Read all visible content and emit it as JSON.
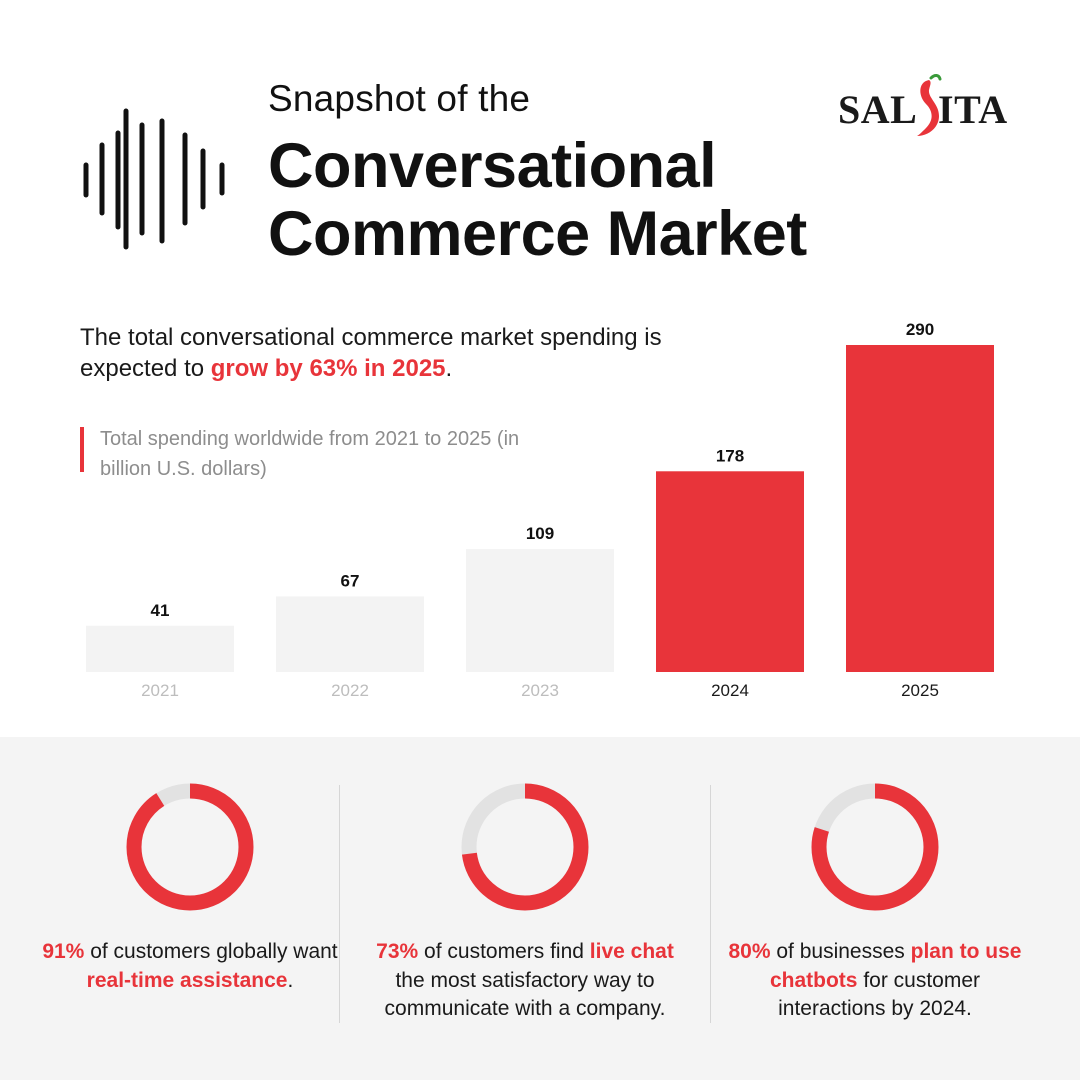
{
  "header": {
    "title_line1": "Snapshot of the",
    "title_line2": "Conversational",
    "title_line3": "Commerce Market",
    "waveform_icon": "soundwave-icon"
  },
  "brand": {
    "name": "SALSITA",
    "name_left": "SAL",
    "name_right": "ITA",
    "logo_icon": "chili-pepper-icon"
  },
  "lead": {
    "pre": "The total conversational commerce market spending is expected to ",
    "highlight": "grow by 63% in 2025",
    "post": "."
  },
  "colors": {
    "accent": "#e8343a",
    "bar_muted": "#f3f3f3",
    "track": "#e2e2e2",
    "panel": "#f4f4f4"
  },
  "chart_data": {
    "type": "bar",
    "title": "Total spending worldwide from 2021 to 2025 (in billion U.S. dollars)",
    "categories": [
      "2021",
      "2022",
      "2023",
      "2024",
      "2025"
    ],
    "values": [
      41,
      67,
      109,
      178,
      290
    ],
    "highlighted": [
      false,
      false,
      false,
      true,
      true
    ],
    "xlabel": "",
    "ylabel": "",
    "ylim": [
      0,
      290
    ],
    "grid": false,
    "legend": "none",
    "data_labels": true
  },
  "stats": [
    {
      "percent": 91,
      "parts": [
        {
          "text": "91%",
          "hl": true
        },
        {
          "text": " of customers globally want ",
          "hl": false
        },
        {
          "text": "real-time assistance",
          "hl": true
        },
        {
          "text": ".",
          "hl": false
        }
      ]
    },
    {
      "percent": 73,
      "parts": [
        {
          "text": "73%",
          "hl": true
        },
        {
          "text": " of customers find ",
          "hl": false
        },
        {
          "text": "live chat",
          "hl": true
        },
        {
          "text": " the most satisfactory way to communicate with a company.",
          "hl": false
        }
      ]
    },
    {
      "percent": 80,
      "parts": [
        {
          "text": "80%",
          "hl": true
        },
        {
          "text": " of businesses ",
          "hl": false
        },
        {
          "text": "plan to use chatbots",
          "hl": true
        },
        {
          "text": " for customer interactions by 2024.",
          "hl": false
        }
      ]
    }
  ]
}
